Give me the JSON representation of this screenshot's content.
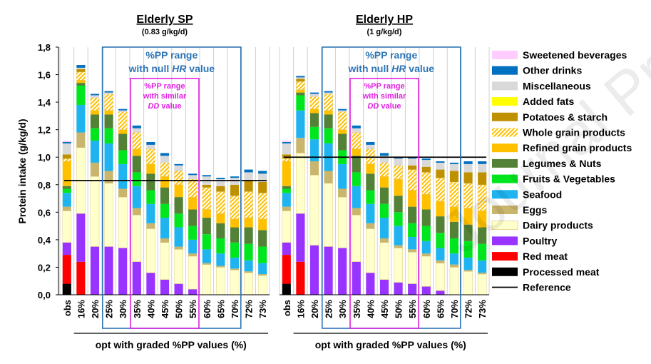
{
  "watermark": "Journal Pre-proof",
  "chart_data": {
    "type": "bar",
    "stacked": true,
    "ylabel": "Protein intake (g/kg/d)",
    "ylim": [
      0,
      1.8
    ],
    "yticks": [
      "0,0",
      "0,2",
      "0,4",
      "0,6",
      "0,8",
      "1,0",
      "1,2",
      "1,4",
      "1,6",
      "1,8"
    ],
    "xlabel": "opt with graded %PP values (%)",
    "categories": [
      "obs",
      "16%",
      "20%",
      "25%",
      "30%",
      "35%",
      "40%",
      "45%",
      "50%",
      "55%",
      "60%",
      "65%",
      "70%",
      "72%",
      "73%"
    ],
    "series_order": [
      "Processed meat",
      "Red meat",
      "Poultry",
      "Dairy products",
      "Eggs",
      "Seafood",
      "Fruits & Vegetables",
      "Legumes & Nuts",
      "Refined grain products",
      "Whole grain products",
      "Potatoes & starch",
      "Added fats",
      "Miscellaneous",
      "Other drinks",
      "Sweetened beverages"
    ],
    "colors": {
      "Processed meat": "#000000",
      "Red meat": "#ff0000",
      "Poultry": "#9933ff",
      "Dairy products": "#ffffcc",
      "Eggs": "#c9b56c",
      "Seafood": "#1fb4f0",
      "Fruits & Vegetables": "#00e61e",
      "Legumes & Nuts": "#538135",
      "Refined grain products": "#ffc000",
      "Whole grain products": "#ffd966",
      "Potatoes & starch": "#bf9000",
      "Added fats": "#ffff00",
      "Miscellaneous": "#d9d9d9",
      "Other drinks": "#0070c0",
      "Sweetened beverages": "#ffccff",
      "Reference": "#000000",
      "null_hr_box": "#2e75b6",
      "similar_dd_box": "#e020e0"
    },
    "legend": [
      "Sweetened beverages",
      "Other drinks",
      "Miscellaneous",
      "Added fats",
      "Potatoes & starch",
      "Whole grain products",
      "Refined grain products",
      "Legumes & Nuts",
      "Fruits & Vegetables",
      "Seafood",
      "Eggs",
      "Dairy products",
      "Poultry",
      "Red meat",
      "Processed meat",
      "Reference"
    ],
    "panels": [
      {
        "title": "Elderly SP",
        "subtitle": "(0.83 g/kg/d)",
        "reference": 0.83,
        "null_hr_range": [
          "25%",
          "70%"
        ],
        "null_hr_label": [
          "%PP range",
          "with null HR value"
        ],
        "similar_dd_range": [
          "35%",
          "55%"
        ],
        "similar_dd_label": [
          "%PP range",
          "with similar",
          "DD value"
        ],
        "stacks": [
          {
            "Processed meat": 0.08,
            "Red meat": 0.21,
            "Poultry": 0.09,
            "Dairy products": 0.23,
            "Eggs": 0.03,
            "Seafood": 0.1,
            "Fruits & Vegetables": 0.03,
            "Legumes & Nuts": 0.02,
            "Refined grain products": 0.18,
            "Whole grain products": 0.02,
            "Potatoes & starch": 0.03,
            "Added fats": 0.0,
            "Miscellaneous": 0.08,
            "Other drinks": 0.01,
            "Sweetened beverages": 0.01
          },
          {
            "Processed meat": 0,
            "Red meat": 0.24,
            "Poultry": 0.35,
            "Dairy products": 0.48,
            "Eggs": 0.11,
            "Seafood": 0.2,
            "Fruits & Vegetables": 0.14,
            "Legumes & Nuts": 0.02,
            "Refined grain products": 0.02,
            "Whole grain products": 0.06,
            "Potatoes & starch": 0.02,
            "Added fats": 0,
            "Miscellaneous": 0.01,
            "Other drinks": 0.02,
            "Sweetened beverages": 0
          },
          {
            "Processed meat": 0,
            "Red meat": 0,
            "Poultry": 0.35,
            "Dairy products": 0.51,
            "Eggs": 0.1,
            "Seafood": 0.16,
            "Fruits & Vegetables": 0.09,
            "Legumes & Nuts": 0.1,
            "Refined grain products": 0.03,
            "Whole grain products": 0.09,
            "Potatoes & starch": 0,
            "Added fats": 0,
            "Miscellaneous": 0.02,
            "Other drinks": 0.01,
            "Sweetened beverages": 0
          },
          {
            "Processed meat": 0,
            "Red meat": 0,
            "Poultry": 0.35,
            "Dairy products": 0.46,
            "Eggs": 0.09,
            "Seafood": 0.2,
            "Fruits & Vegetables": 0.11,
            "Legumes & Nuts": 0.1,
            "Refined grain products": 0.03,
            "Whole grain products": 0.12,
            "Potatoes & starch": 0,
            "Added fats": 0,
            "Miscellaneous": 0.01,
            "Other drinks": 0.01,
            "Sweetened beverages": 0
          },
          {
            "Processed meat": 0,
            "Red meat": 0,
            "Poultry": 0.34,
            "Dairy products": 0.37,
            "Eggs": 0.06,
            "Seafood": 0.18,
            "Fruits & Vegetables": 0.1,
            "Legumes & Nuts": 0.12,
            "Refined grain products": 0.03,
            "Whole grain products": 0.13,
            "Potatoes & starch": 0,
            "Added fats": 0,
            "Miscellaneous": 0.01,
            "Other drinks": 0.01,
            "Sweetened beverages": 0
          },
          {
            "Processed meat": 0,
            "Red meat": 0,
            "Poultry": 0.24,
            "Dairy products": 0.34,
            "Eggs": 0.05,
            "Seafood": 0.16,
            "Fruits & Vegetables": 0.1,
            "Legumes & Nuts": 0.12,
            "Refined grain products": 0.05,
            "Whole grain products": 0.12,
            "Potatoes & starch": 0,
            "Added fats": 0,
            "Miscellaneous": 0.03,
            "Other drinks": 0.02,
            "Sweetened beverages": 0
          },
          {
            "Processed meat": 0,
            "Red meat": 0,
            "Poultry": 0.16,
            "Dairy products": 0.32,
            "Eggs": 0.04,
            "Seafood": 0.14,
            "Fruits & Vegetables": 0.1,
            "Legumes & Nuts": 0.12,
            "Refined grain products": 0.07,
            "Whole grain products": 0.11,
            "Potatoes & starch": 0,
            "Added fats": 0,
            "Miscellaneous": 0.03,
            "Other drinks": 0.02,
            "Sweetened beverages": 0
          },
          {
            "Processed meat": 0,
            "Red meat": 0,
            "Poultry": 0.11,
            "Dairy products": 0.27,
            "Eggs": 0.03,
            "Seafood": 0.15,
            "Fruits & Vegetables": 0.1,
            "Legumes & Nuts": 0.12,
            "Refined grain products": 0.08,
            "Whole grain products": 0.1,
            "Potatoes & starch": 0,
            "Added fats": 0,
            "Miscellaneous": 0.05,
            "Other drinks": 0.02,
            "Sweetened beverages": 0
          },
          {
            "Processed meat": 0,
            "Red meat": 0,
            "Poultry": 0.08,
            "Dairy products": 0.25,
            "Eggs": 0.02,
            "Seafood": 0.14,
            "Fruits & Vegetables": 0.1,
            "Legumes & Nuts": 0.12,
            "Refined grain products": 0.09,
            "Whole grain products": 0.1,
            "Potatoes & starch": 0,
            "Added fats": 0,
            "Miscellaneous": 0.04,
            "Other drinks": 0.01,
            "Sweetened beverages": 0
          },
          {
            "Processed meat": 0,
            "Red meat": 0,
            "Poultry": 0.04,
            "Dairy products": 0.24,
            "Eggs": 0.02,
            "Seafood": 0.1,
            "Fruits & Vegetables": 0.1,
            "Legumes & Nuts": 0.12,
            "Refined grain products": 0.09,
            "Whole grain products": 0.13,
            "Potatoes & starch": 0,
            "Added fats": 0,
            "Miscellaneous": 0.03,
            "Other drinks": 0.01,
            "Sweetened beverages": 0
          },
          {
            "Processed meat": 0,
            "Red meat": 0,
            "Poultry": 0,
            "Dairy products": 0.22,
            "Eggs": 0.01,
            "Seafood": 0.1,
            "Fruits & Vegetables": 0.11,
            "Legumes & Nuts": 0.12,
            "Refined grain products": 0.06,
            "Whole grain products": 0.16,
            "Potatoes & starch": 0.02,
            "Added fats": 0,
            "Miscellaneous": 0.06,
            "Other drinks": 0.01,
            "Sweetened beverages": 0
          },
          {
            "Processed meat": 0,
            "Red meat": 0,
            "Poultry": 0,
            "Dairy products": 0.2,
            "Eggs": 0.01,
            "Seafood": 0.09,
            "Fruits & Vegetables": 0.11,
            "Legumes & Nuts": 0.11,
            "Refined grain products": 0.07,
            "Whole grain products": 0.16,
            "Potatoes & starch": 0.04,
            "Added fats": 0,
            "Miscellaneous": 0.05,
            "Other drinks": 0.01,
            "Sweetened beverages": 0
          },
          {
            "Processed meat": 0,
            "Red meat": 0,
            "Poultry": 0,
            "Dairy products": 0.18,
            "Eggs": 0.01,
            "Seafood": 0.08,
            "Fruits & Vegetables": 0.11,
            "Legumes & Nuts": 0.11,
            "Refined grain products": 0.06,
            "Whole grain products": 0.17,
            "Potatoes & starch": 0.08,
            "Added fats": 0,
            "Miscellaneous": 0.05,
            "Other drinks": 0.01,
            "Sweetened beverages": 0
          },
          {
            "Processed meat": 0,
            "Red meat": 0,
            "Poultry": 0,
            "Dairy products": 0.16,
            "Eggs": 0.01,
            "Seafood": 0.08,
            "Fruits & Vegetables": 0.12,
            "Legumes & Nuts": 0.12,
            "Refined grain products": 0.07,
            "Whole grain products": 0.19,
            "Potatoes & starch": 0.08,
            "Added fats": 0,
            "Miscellaneous": 0.06,
            "Other drinks": 0.02,
            "Sweetened beverages": 0
          },
          {
            "Processed meat": 0,
            "Red meat": 0,
            "Poultry": 0,
            "Dairy products": 0.14,
            "Eggs": 0.01,
            "Seafood": 0.08,
            "Fruits & Vegetables": 0.12,
            "Legumes & Nuts": 0.12,
            "Refined grain products": 0.08,
            "Whole grain products": 0.19,
            "Potatoes & starch": 0.08,
            "Added fats": 0,
            "Miscellaneous": 0.06,
            "Other drinks": 0.02,
            "Sweetened beverages": 0
          }
        ]
      },
      {
        "title": "Elderly HP",
        "subtitle": "(1 g/kg/d)",
        "reference": 1.0,
        "null_hr_range": [
          "25%",
          "70%"
        ],
        "null_hr_label": [
          "%PP range",
          "with null HR value"
        ],
        "similar_dd_range": [
          "35%",
          "55%"
        ],
        "similar_dd_label": [
          "%PP range",
          "with similar",
          "DD value"
        ],
        "stacks": [
          {
            "Processed meat": 0.08,
            "Red meat": 0.21,
            "Poultry": 0.09,
            "Dairy products": 0.23,
            "Eggs": 0.03,
            "Seafood": 0.1,
            "Fruits & Vegetables": 0.03,
            "Legumes & Nuts": 0.02,
            "Refined grain products": 0.18,
            "Whole grain products": 0.02,
            "Potatoes & starch": 0.03,
            "Added fats": 0.0,
            "Miscellaneous": 0.08,
            "Other drinks": 0.01,
            "Sweetened beverages": 0.01
          },
          {
            "Processed meat": 0,
            "Red meat": 0.24,
            "Poultry": 0.35,
            "Dairy products": 0.44,
            "Eggs": 0.11,
            "Seafood": 0.2,
            "Fruits & Vegetables": 0.11,
            "Legumes & Nuts": 0.02,
            "Refined grain products": 0.02,
            "Whole grain products": 0.06,
            "Potatoes & starch": 0.02,
            "Added fats": 0,
            "Miscellaneous": 0.01,
            "Other drinks": 0.01,
            "Sweetened beverages": 0
          },
          {
            "Processed meat": 0,
            "Red meat": 0,
            "Poultry": 0.36,
            "Dairy products": 0.51,
            "Eggs": 0.1,
            "Seafood": 0.16,
            "Fruits & Vegetables": 0.09,
            "Legumes & Nuts": 0.1,
            "Refined grain products": 0.03,
            "Whole grain products": 0.09,
            "Potatoes & starch": 0,
            "Added fats": 0,
            "Miscellaneous": 0.02,
            "Other drinks": 0.01,
            "Sweetened beverages": 0
          },
          {
            "Processed meat": 0,
            "Red meat": 0,
            "Poultry": 0.35,
            "Dairy products": 0.46,
            "Eggs": 0.09,
            "Seafood": 0.2,
            "Fruits & Vegetables": 0.11,
            "Legumes & Nuts": 0.1,
            "Refined grain products": 0.03,
            "Whole grain products": 0.12,
            "Potatoes & starch": 0,
            "Added fats": 0,
            "Miscellaneous": 0.01,
            "Other drinks": 0.01,
            "Sweetened beverages": 0
          },
          {
            "Processed meat": 0,
            "Red meat": 0,
            "Poultry": 0.34,
            "Dairy products": 0.37,
            "Eggs": 0.06,
            "Seafood": 0.18,
            "Fruits & Vegetables": 0.1,
            "Legumes & Nuts": 0.12,
            "Refined grain products": 0.03,
            "Whole grain products": 0.13,
            "Potatoes & starch": 0,
            "Added fats": 0,
            "Miscellaneous": 0.01,
            "Other drinks": 0.01,
            "Sweetened beverages": 0
          },
          {
            "Processed meat": 0,
            "Red meat": 0,
            "Poultry": 0.24,
            "Dairy products": 0.34,
            "Eggs": 0.05,
            "Seafood": 0.16,
            "Fruits & Vegetables": 0.1,
            "Legumes & Nuts": 0.12,
            "Refined grain products": 0.05,
            "Whole grain products": 0.12,
            "Potatoes & starch": 0,
            "Added fats": 0,
            "Miscellaneous": 0.03,
            "Other drinks": 0.02,
            "Sweetened beverages": 0
          },
          {
            "Processed meat": 0,
            "Red meat": 0,
            "Poultry": 0.16,
            "Dairy products": 0.32,
            "Eggs": 0.04,
            "Seafood": 0.14,
            "Fruits & Vegetables": 0.1,
            "Legumes & Nuts": 0.12,
            "Refined grain products": 0.07,
            "Whole grain products": 0.11,
            "Potatoes & starch": 0,
            "Added fats": 0,
            "Miscellaneous": 0.03,
            "Other drinks": 0.02,
            "Sweetened beverages": 0
          },
          {
            "Processed meat": 0,
            "Red meat": 0,
            "Poultry": 0.11,
            "Dairy products": 0.27,
            "Eggs": 0.03,
            "Seafood": 0.15,
            "Fruits & Vegetables": 0.1,
            "Legumes & Nuts": 0.12,
            "Refined grain products": 0.08,
            "Whole grain products": 0.1,
            "Potatoes & starch": 0,
            "Added fats": 0,
            "Miscellaneous": 0.05,
            "Other drinks": 0.02,
            "Sweetened beverages": 0
          },
          {
            "Processed meat": 0,
            "Red meat": 0,
            "Poultry": 0.09,
            "Dairy products": 0.25,
            "Eggs": 0.02,
            "Seafood": 0.14,
            "Fruits & Vegetables": 0.1,
            "Legumes & Nuts": 0.12,
            "Refined grain products": 0.12,
            "Whole grain products": 0.1,
            "Potatoes & starch": 0,
            "Added fats": 0,
            "Miscellaneous": 0.05,
            "Other drinks": 0.01,
            "Sweetened beverages": 0
          },
          {
            "Processed meat": 0,
            "Red meat": 0,
            "Poultry": 0.08,
            "Dairy products": 0.23,
            "Eggs": 0.02,
            "Seafood": 0.09,
            "Fruits & Vegetables": 0.1,
            "Legumes & Nuts": 0.12,
            "Refined grain products": 0.12,
            "Whole grain products": 0.15,
            "Potatoes & starch": 0.03,
            "Added fats": 0,
            "Miscellaneous": 0.05,
            "Other drinks": 0.01,
            "Sweetened beverages": 0
          },
          {
            "Processed meat": 0,
            "Red meat": 0,
            "Poultry": 0.06,
            "Dairy products": 0.22,
            "Eggs": 0.02,
            "Seafood": 0.09,
            "Fruits & Vegetables": 0.11,
            "Legumes & Nuts": 0.12,
            "Refined grain products": 0.11,
            "Whole grain products": 0.16,
            "Potatoes & starch": 0.04,
            "Added fats": 0,
            "Miscellaneous": 0.05,
            "Other drinks": 0.01,
            "Sweetened beverages": 0
          },
          {
            "Processed meat": 0,
            "Red meat": 0,
            "Poultry": 0.03,
            "Dairy products": 0.2,
            "Eggs": 0.02,
            "Seafood": 0.09,
            "Fruits & Vegetables": 0.11,
            "Legumes & Nuts": 0.12,
            "Refined grain products": 0.11,
            "Whole grain products": 0.17,
            "Potatoes & starch": 0.06,
            "Added fats": 0,
            "Miscellaneous": 0.05,
            "Other drinks": 0.01,
            "Sweetened beverages": 0
          },
          {
            "Processed meat": 0,
            "Red meat": 0,
            "Poultry": 0,
            "Dairy products": 0.2,
            "Eggs": 0.02,
            "Seafood": 0.08,
            "Fruits & Vegetables": 0.11,
            "Legumes & Nuts": 0.12,
            "Refined grain products": 0.11,
            "Whole grain products": 0.18,
            "Potatoes & starch": 0.08,
            "Added fats": 0,
            "Miscellaneous": 0.05,
            "Other drinks": 0.01,
            "Sweetened beverages": 0
          },
          {
            "Processed meat": 0,
            "Red meat": 0,
            "Poultry": 0,
            "Dairy products": 0.17,
            "Eggs": 0.01,
            "Seafood": 0.09,
            "Fruits & Vegetables": 0.12,
            "Legumes & Nuts": 0.12,
            "Refined grain products": 0.12,
            "Whole grain products": 0.18,
            "Potatoes & starch": 0.08,
            "Added fats": 0,
            "Miscellaneous": 0.06,
            "Other drinks": 0.02,
            "Sweetened beverages": 0
          },
          {
            "Processed meat": 0,
            "Red meat": 0,
            "Poultry": 0,
            "Dairy products": 0.15,
            "Eggs": 0.01,
            "Seafood": 0.09,
            "Fruits & Vegetables": 0.12,
            "Legumes & Nuts": 0.12,
            "Refined grain products": 0.12,
            "Whole grain products": 0.19,
            "Potatoes & starch": 0.09,
            "Added fats": 0,
            "Miscellaneous": 0.06,
            "Other drinks": 0.02,
            "Sweetened beverages": 0
          }
        ]
      }
    ]
  }
}
